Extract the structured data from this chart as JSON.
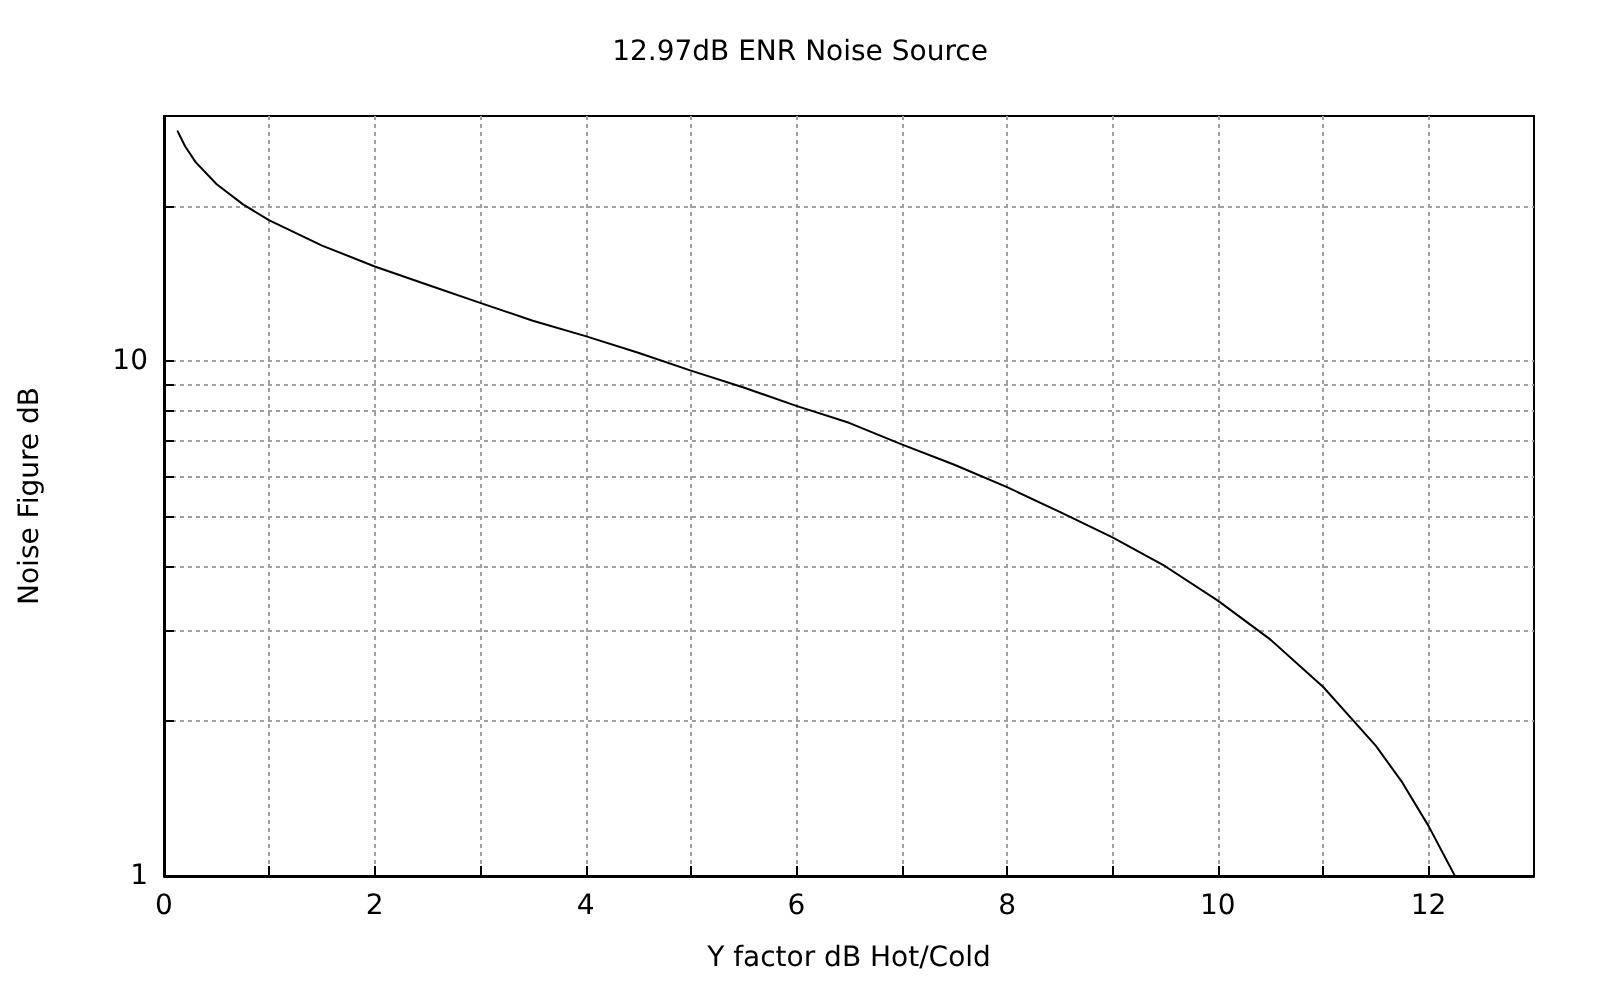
{
  "chart_data": {
    "type": "line",
    "title": "12.97dB ENR Noise Source",
    "xlabel": "Y factor dB Hot/Cold",
    "ylabel": "Noise Figure dB",
    "x": [
      0.13,
      0.2,
      0.3,
      0.5,
      0.75,
      1,
      1.5,
      2,
      2.5,
      3,
      3.5,
      4,
      4.5,
      5,
      5.5,
      6,
      6.5,
      7,
      7.5,
      8,
      8.5,
      9,
      9.5,
      10,
      10.5,
      11,
      11.5,
      11.75,
      12,
      12.25
    ],
    "series": [
      {
        "color": "#000000",
        "values": [
          28,
          26.2,
          24.4,
          22.1,
          20.2,
          18.8,
          16.8,
          15.3,
          14.1,
          13,
          12,
          11.2,
          10.4,
          9.6,
          8.9,
          8.2,
          7.6,
          6.9,
          6.3,
          5.7,
          5.1,
          4.55,
          4,
          3.43,
          2.88,
          2.33,
          1.79,
          1.52,
          1.25,
          1
        ]
      }
    ],
    "log": "y",
    "xlim": [
      0,
      13
    ],
    "ylim": [
      1,
      30
    ],
    "xticks": [
      0,
      {
        "value": 1,
        "label": null
      },
      2,
      {
        "value": 3,
        "label": null
      },
      4,
      {
        "value": 5,
        "label": null
      },
      6,
      {
        "value": 7,
        "label": null
      },
      8,
      {
        "value": 9,
        "label": null
      },
      10,
      {
        "value": 11,
        "label": null
      },
      12
    ],
    "yticks": [
      1,
      {
        "value": 2,
        "label": null
      },
      {
        "value": 3,
        "label": null
      },
      {
        "value": 4,
        "label": null
      },
      {
        "value": 5,
        "label": null
      },
      {
        "value": 6,
        "label": null
      },
      {
        "value": 7,
        "label": null
      },
      {
        "value": 8,
        "label": null
      },
      {
        "value": 9,
        "label": null
      },
      10,
      {
        "value": 20,
        "label": null
      }
    ],
    "grid": true,
    "marker": "none",
    "line_style": "solid"
  }
}
